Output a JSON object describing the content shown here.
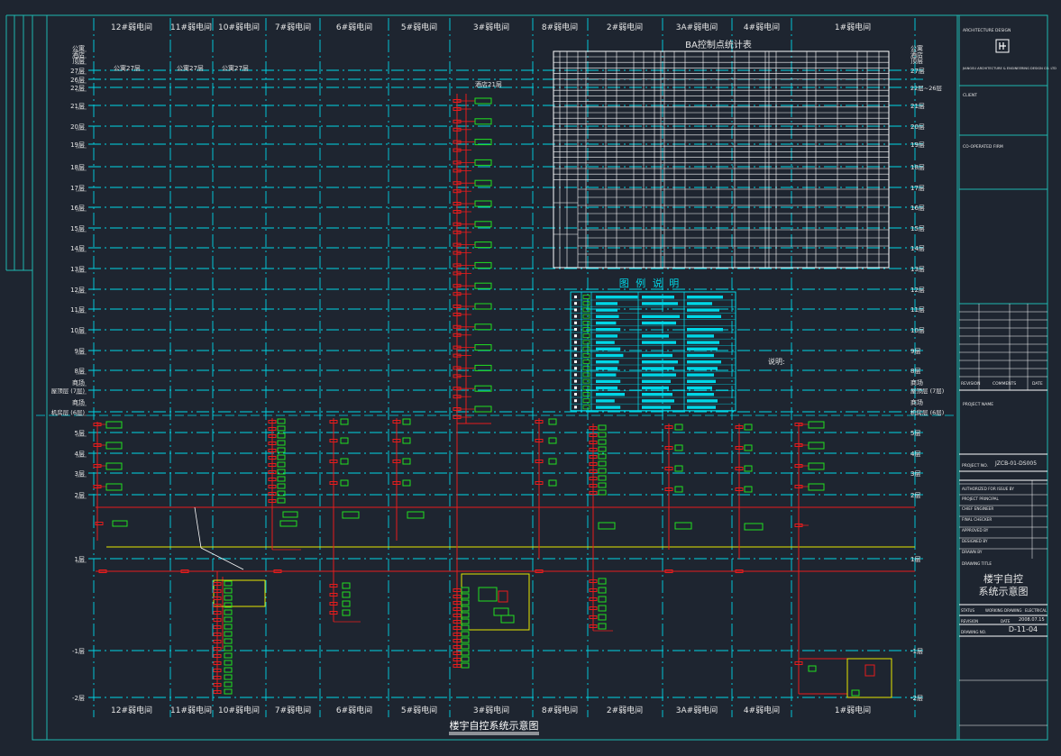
{
  "title": "楼宇自控系统示意图",
  "columns_top": [
    "12#弱电间",
    "11#弱电间",
    "10#弱电间",
    "7#弱电间",
    "6#弱电间",
    "5#弱电间",
    "3#弱电间",
    "8#弱电间",
    "2#弱电间",
    "3A#弱电间",
    "4#弱电间",
    "1#弱电间"
  ],
  "columns_bottom": [
    "12#弱电间",
    "11#弱电间",
    "10#弱电间",
    "7#弱电间",
    "6#弱电间",
    "5#弱电间",
    "3#弱电间",
    "8#弱电间",
    "2#弱电间",
    "3A#弱电间",
    "4#弱电间",
    "1#弱电间"
  ],
  "floors_left": [
    "公寓",
    "酒店",
    "顶层",
    "27层",
    "26层",
    "22层",
    "21层",
    "20层",
    "19层",
    "18层",
    "17层",
    "16层",
    "15层",
    "14层",
    "13层",
    "12层",
    "11层",
    "10层",
    "9层",
    "8层",
    "商场",
    "屋顶层 (7层)",
    "商场",
    "机房层 (6层)",
    "5层",
    "4层",
    "3层",
    "2层",
    "1层",
    "-1层",
    "-2层"
  ],
  "floors_right": [
    "公寓",
    "酒店",
    "顶层",
    "27层",
    "22层~26层",
    "21层",
    "20层",
    "19层",
    "18层",
    "17层",
    "16层",
    "15层",
    "14层",
    "13层",
    "12层",
    "11层",
    "10层",
    "9层",
    "8层",
    "商场",
    "屋顶层 (7层)",
    "商场",
    "机房层 (6层)",
    "5层",
    "4层",
    "3层",
    "2层",
    "1层",
    "-1层",
    "-2层"
  ],
  "annotations": {
    "apt27_a": "公寓27层",
    "apt27_b": "公寓27层",
    "apt27_c": "公寓27层",
    "hotel21": "酒店21层",
    "notes": "说明:"
  },
  "ba_table_title": "BA控制点统计表",
  "legend_title": "图 例 说 明",
  "title_block": {
    "firm": "ARCHITECTURE DESIGN",
    "firm_sub": "JIANGSU ARCHITECTURE & ENGINEERING DESIGN CO. LTD",
    "client": "CLIENT",
    "co_operated": "CO-OPERATED FIRM",
    "revision": "REVISION",
    "comments": "COMMENTS",
    "date_h": "DATE",
    "project_name": "PROJECT NAME",
    "project_no_label": "PROJECT NO.",
    "project_no": "JZCB-01-DS005",
    "authorized": "AUTHORIZED FOR ISSUE BY",
    "principal": "PROJECT PRINCIPAL",
    "chief": "CHIEF ENGINEER",
    "final": "FINAL CHECKER",
    "approved": "APPROVED BY",
    "designed": "DESIGNED BY",
    "drawn": "DRAWN BY",
    "drawing_title_label": "DRAWING TITLE",
    "drawing_title_1": "楼宇自控",
    "drawing_title_2": "系统示意图",
    "status_label": "STATUS",
    "status_a": "WORKING DRAWING",
    "status_b": "ELECTRICAL",
    "revision_label": "REVISION",
    "date_label": "DATE",
    "date_value": "2008.07.15",
    "drawing_no_label": "DRAWING NO.",
    "drawing_no": "D-11-04"
  },
  "colors": {
    "background": "#1e2530",
    "grid": "#00d6e6",
    "bus": "#e81c1c",
    "device": "#21e021",
    "highlight": "#e6e600",
    "text": "#e6e6e6"
  }
}
